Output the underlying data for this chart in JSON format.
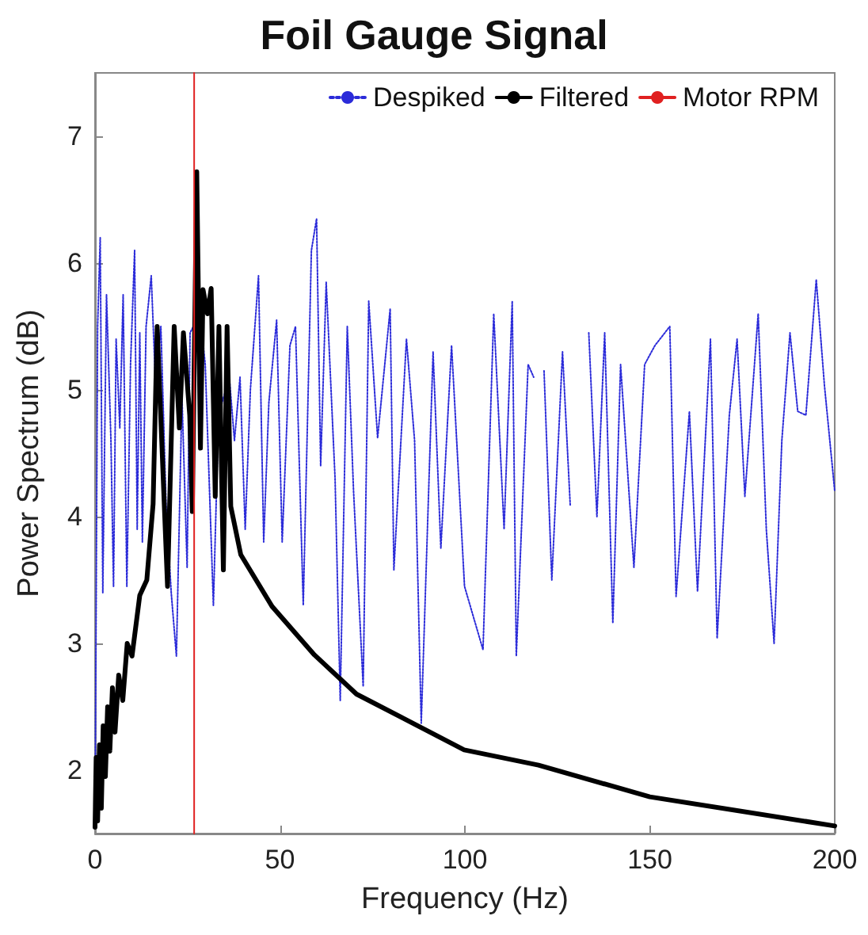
{
  "chart_data": {
    "type": "line",
    "title": "Foil Gauge Signal",
    "xlabel": "Frequency (Hz)",
    "ylabel": "Power Spectrum (dB)",
    "xlim": [
      0,
      200
    ],
    "xticks": [
      0,
      50,
      100,
      150,
      200
    ],
    "ylim": [
      1.5,
      7.5
    ],
    "yticks": [
      2,
      3,
      4,
      5,
      6,
      7
    ],
    "grid": false,
    "legend": "top right",
    "marker": "none",
    "series": [
      {
        "name": "Despiked",
        "color": "#2b2bd9",
        "line_style": "dotted",
        "x": [
          0,
          0.7,
          1.4,
          2.1,
          3.1,
          4.3,
          5,
          5.7,
          6.7,
          7.6,
          8.6,
          9.6,
          10.7,
          11.4,
          12.1,
          12.8,
          13.8,
          15.2,
          16.4,
          17.8,
          19.2,
          20.6,
          22,
          23.5,
          24.9,
          25.7,
          28.4,
          29.8,
          32,
          33.4,
          36.3,
          37.7,
          39.2,
          40.6,
          42,
          44.2,
          45.6,
          47,
          49.1,
          50.6,
          52.7,
          54.2,
          56.3,
          58.5,
          59.9,
          61,
          62.5,
          64.9,
          66.3,
          68.2,
          69.9,
          72.5,
          74,
          76.4,
          79.8,
          80.8,
          84.2,
          86.4,
          88.2,
          91.4,
          93.5,
          96.4,
          99.9,
          104.9,
          107.8,
          110.6,
          112.8,
          113.9,
          117.1,
          118.6,
          120,
          121.4,
          123.5,
          126.4,
          128.5,
          130.9,
          133.5,
          135.7,
          137.8,
          140,
          142.1,
          145.7,
          148.6,
          151.4,
          155.4,
          157.1,
          160.7,
          162.9,
          166.4,
          168.2,
          171.5,
          173.6,
          175.7,
          179.3,
          181.5,
          183.6,
          185.7,
          187.9,
          190,
          192.2,
          195,
          197.2,
          200
        ],
        "values": [
          1.6,
          5.5,
          6.2,
          3.4,
          5.75,
          4.6,
          3.45,
          5.4,
          4.7,
          5.75,
          3.45,
          5.2,
          6.1,
          3.9,
          5.45,
          3.8,
          5.5,
          5.9,
          5.0,
          5.5,
          4.1,
          3.4,
          2.9,
          4.95,
          3.6,
          5.45,
          5.6,
          5.2,
          3.3,
          4.8,
          5.1,
          4.6,
          5.1,
          3.9,
          5.0,
          5.9,
          3.8,
          4.9,
          5.55,
          3.8,
          5.35,
          5.5,
          3.3,
          6.1,
          6.35,
          4.4,
          5.85,
          4.3,
          2.55,
          5.5,
          4.2,
          2.66,
          5.7,
          4.62,
          5.64,
          3.58,
          5.4,
          4.6,
          2.37,
          5.3,
          3.75,
          5.35,
          3.45,
          2.95,
          5.6,
          3.9,
          5.7,
          2.9,
          5.2,
          5.1,
          null,
          5.15,
          3.5,
          5.3,
          4.08,
          null,
          5.45,
          4.0,
          5.45,
          3.16,
          5.2,
          3.6,
          5.2,
          5.35,
          5.5,
          3.37,
          4.83,
          3.41,
          5.4,
          3.04,
          4.8,
          5.4,
          4.16,
          5.6,
          3.9,
          3.0,
          4.6,
          5.45,
          4.83,
          4.8,
          5.87,
          5.04,
          4.2
        ]
      },
      {
        "name": "Filtered",
        "color": "#000000",
        "line_style": "solid",
        "x": [
          0,
          0.3,
          0.7,
          1.2,
          1.7,
          2.2,
          2.8,
          3.4,
          4,
          4.7,
          5.4,
          6.4,
          7.5,
          8.7,
          10,
          12.1,
          14,
          15.7,
          16.8,
          19.6,
          21.4,
          22.8,
          23.9,
          25.6,
          26.3,
          27.5,
          28.5,
          29.2,
          30.4,
          31.4,
          32.5,
          33.5,
          34.7,
          35.7,
          36.7,
          39.4,
          47.9,
          59.3,
          70.7,
          99.8,
          119.9,
          150,
          200
        ],
        "values": [
          1.55,
          2.1,
          1.6,
          2.2,
          1.7,
          2.35,
          1.95,
          2.5,
          2.15,
          2.65,
          2.3,
          2.75,
          2.55,
          3.0,
          2.9,
          3.38,
          3.5,
          4.1,
          5.5,
          3.45,
          5.5,
          4.7,
          5.45,
          4.8,
          4.04,
          6.72,
          4.54,
          5.79,
          5.6,
          5.8,
          4.16,
          5.5,
          3.58,
          5.5,
          4.08,
          3.7,
          3.29,
          2.91,
          2.6,
          2.16,
          2.04,
          1.79,
          1.56
        ]
      },
      {
        "name": "Motor RPM",
        "color": "#e02020",
        "line_style": "solid",
        "x": [
          26.8,
          26.8
        ],
        "values": [
          1.5,
          7.5
        ]
      }
    ]
  }
}
